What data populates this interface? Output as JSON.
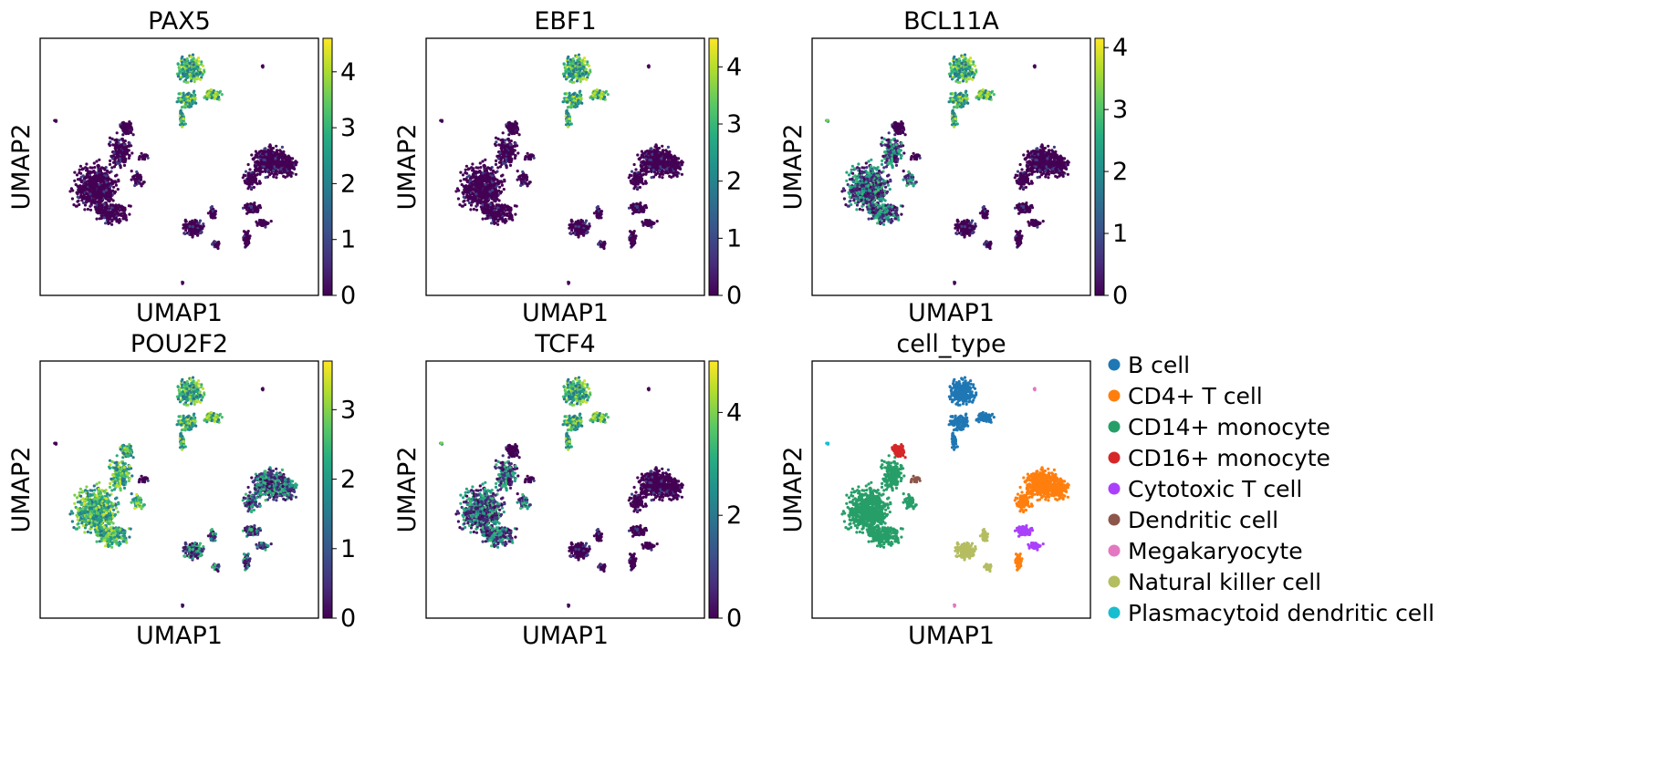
{
  "chart_data": [
    {
      "type": "scatter",
      "title": "PAX5",
      "xlabel": "UMAP1",
      "ylabel": "UMAP2",
      "color_scale": "viridis",
      "colorbar": {
        "min": 0,
        "max": 4.6,
        "ticks": [
          "0",
          "1",
          "2",
          "3",
          "4"
        ]
      },
      "high_groups": [
        "B cell"
      ],
      "mid_groups": []
    },
    {
      "type": "scatter",
      "title": "EBF1",
      "xlabel": "UMAP1",
      "ylabel": "UMAP2",
      "color_scale": "viridis",
      "colorbar": {
        "min": 0,
        "max": 4.5,
        "ticks": [
          "0",
          "1",
          "2",
          "3",
          "4"
        ]
      },
      "high_groups": [
        "B cell"
      ],
      "mid_groups": []
    },
    {
      "type": "scatter",
      "title": "BCL11A",
      "xlabel": "UMAP1",
      "ylabel": "UMAP2",
      "color_scale": "viridis",
      "colorbar": {
        "min": 0,
        "max": 4.15,
        "ticks": [
          "0",
          "1",
          "2",
          "3",
          "4"
        ]
      },
      "high_groups": [
        "B cell",
        "Plasmacytoid dendritic cell"
      ],
      "mid_groups": [
        "CD14+ monocyte"
      ]
    },
    {
      "type": "scatter",
      "title": "POU2F2",
      "xlabel": "UMAP1",
      "ylabel": "UMAP2",
      "color_scale": "viridis",
      "colorbar": {
        "min": 0,
        "max": 3.7,
        "ticks": [
          "0",
          "1",
          "2",
          "3"
        ]
      },
      "high_groups": [
        "B cell",
        "CD14+ monocyte",
        "CD16+ monocyte"
      ],
      "mid_groups": [
        "CD4+ T cell",
        "Cytotoxic T cell",
        "Natural killer cell"
      ]
    },
    {
      "type": "scatter",
      "title": "TCF4",
      "xlabel": "UMAP1",
      "ylabel": "UMAP2",
      "color_scale": "viridis",
      "colorbar": {
        "min": 0,
        "max": 5.0,
        "ticks": [
          "0",
          "2",
          "4"
        ]
      },
      "high_groups": [
        "B cell",
        "Plasmacytoid dendritic cell"
      ],
      "mid_groups": [
        "CD14+ monocyte"
      ]
    },
    {
      "type": "scatter",
      "title": "cell_type",
      "xlabel": "UMAP1",
      "ylabel": "UMAP2",
      "legend_position": "right",
      "legend": [
        {
          "label": "B cell",
          "color": "#1f77b4"
        },
        {
          "label": "CD4+ T cell",
          "color": "#ff7f0e"
        },
        {
          "label": "CD14+ monocyte",
          "color": "#279e68"
        },
        {
          "label": "CD16+ monocyte",
          "color": "#d62728"
        },
        {
          "label": "Cytotoxic T cell",
          "color": "#aa40fc"
        },
        {
          "label": "Dendritic cell",
          "color": "#8c564b"
        },
        {
          "label": "Megakaryocyte",
          "color": "#e377c2"
        },
        {
          "label": "Natural killer cell",
          "color": "#b5bd61"
        },
        {
          "label": "Plasmacytoid dendritic cell",
          "color": "#17becf"
        }
      ]
    }
  ]
}
